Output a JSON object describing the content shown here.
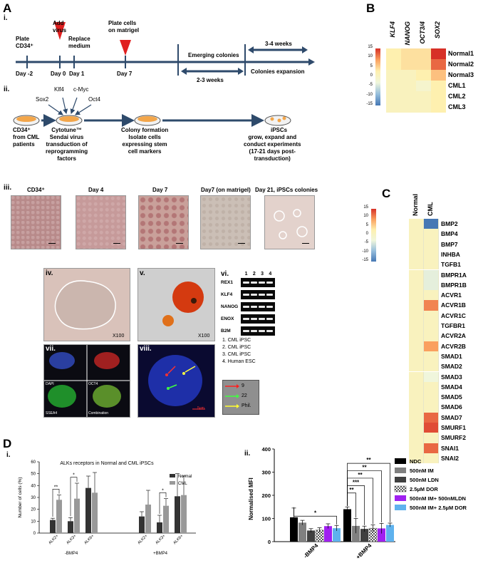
{
  "panels": {
    "A": "A",
    "B": "B",
    "C": "C",
    "D": "D"
  },
  "timeline": {
    "sub": "i.",
    "events": [
      "Plate\nCD34⁺",
      "Add\nvirus",
      "Replace\nmedium",
      "Plate cells\non matrigel"
    ],
    "days": [
      "Day -2",
      "Day 0",
      "Day 1",
      "Day 7"
    ],
    "emerging": "Emerging colonies",
    "weeks_23": "2-3 weeks",
    "weeks_34": "3-4 weeks",
    "expansion": "Colonies expansion"
  },
  "workflow": {
    "sub": "ii.",
    "factors": [
      "Sox2",
      "Klf4",
      "c-Myc",
      "Oct4"
    ],
    "step1": "CD34⁺\nfrom CML\npatients",
    "step2": "Cytotune™\nSendai virus\ntransduction of\nreprogramming\nfactors",
    "step3": "Colony formation\nIsolate cells\nexpressing stem\ncell markers",
    "step4_title": "iPSCs",
    "step4": "grow, expand and\nconduct experiments\n(17-21 days post-\ntransduction)"
  },
  "micrographs": {
    "sub": "iii.",
    "labels": [
      "CD34⁺",
      "Day 4",
      "Day 7",
      "Day7 (on matrigel)",
      "Day 21, iPSCs colonies"
    ]
  },
  "assays": {
    "iv": "iv.",
    "v": "v.",
    "vi": "vi.",
    "vii": "vii.",
    "viii": "viii.",
    "mag": "X100",
    "lanes": [
      "1",
      "2",
      "3",
      "4"
    ],
    "genes": [
      "REX1",
      "KLF4",
      "NANOG",
      "ENOX",
      "B2M"
    ],
    "legend": [
      "1.   CML iPSC",
      "2.   CML iPSC",
      "3.   CML iPSC",
      "4.   Human ESC"
    ],
    "fish_legend": [
      "9",
      "22",
      "Phil."
    ],
    "if_labels": [
      "DAPI",
      "OCT4",
      "SSEA4",
      "Combination"
    ],
    "scale": "5µm"
  },
  "heatmap_B": {
    "columns": [
      "KLF4",
      "NANOG",
      "OCT3/4",
      "SOX2"
    ],
    "rows": [
      "Normal1",
      "Normal2",
      "Normal3",
      "CML1",
      "CML2",
      "CML3"
    ],
    "colorbar_ticks": [
      "15",
      "10",
      "5",
      "0",
      "-5",
      "-10",
      "-15"
    ],
    "values": [
      [
        3,
        4,
        4,
        16
      ],
      [
        3,
        4,
        4,
        12
      ],
      [
        2,
        2,
        3,
        6
      ],
      [
        2,
        2,
        1,
        3
      ],
      [
        2,
        2,
        2,
        3
      ],
      [
        2,
        2,
        2,
        3
      ]
    ]
  },
  "heatmap_C": {
    "columns": [
      "Normal",
      "CML"
    ],
    "colorbar_ticks": [
      "15",
      "10",
      "5",
      "0",
      "-5",
      "-10",
      "-15"
    ],
    "rows": [
      "BMP2",
      "BMP4",
      "BMP7",
      "INHBA",
      "TGFB1",
      "BMPR1A",
      "BMPR1B",
      "ACVR1",
      "ACVR1B",
      "ACVR1C",
      "TGFBR1",
      "ACVR2A",
      "ACVR2B",
      "SMAD1",
      "SMAD2",
      "SMAD3",
      "SMAD4",
      "SMAD5",
      "SMAD6",
      "SMAD7",
      "SMURF1",
      "SMURF2",
      "SNAI1",
      "SNAI2"
    ],
    "values": [
      [
        2,
        -16
      ],
      [
        2,
        2
      ],
      [
        2,
        2
      ],
      [
        2,
        2
      ],
      [
        2,
        2
      ],
      [
        2,
        -1
      ],
      [
        2,
        -1
      ],
      [
        2,
        2
      ],
      [
        2,
        10
      ],
      [
        2,
        2
      ],
      [
        2,
        2
      ],
      [
        2,
        2
      ],
      [
        2,
        8
      ],
      [
        2,
        2
      ],
      [
        2,
        2
      ],
      [
        2,
        0
      ],
      [
        2,
        2
      ],
      [
        2,
        2
      ],
      [
        2,
        2
      ],
      [
        2,
        12
      ],
      [
        2,
        14
      ],
      [
        2,
        2
      ],
      [
        2,
        12
      ],
      [
        2,
        2
      ]
    ]
  },
  "chart_data": [
    {
      "type": "bar",
      "title": "ALKs receptors in Normal and CML iPSCs",
      "ylabel": "Number of cells (%)",
      "ylim": [
        0,
        60
      ],
      "yticks": [
        "0",
        "10",
        "20",
        "30",
        "40",
        "50",
        "60"
      ],
      "categories": [
        "ALK2+",
        "ALK3+",
        "ALK6+",
        "ALK2+",
        "ALK3+",
        "ALK6+"
      ],
      "groups": [
        "-BMP4",
        "+BMP4"
      ],
      "series": [
        {
          "name": "Normal",
          "values": [
            11,
            10,
            38,
            14,
            9,
            31
          ],
          "errors": [
            1.5,
            3,
            10,
            4,
            6,
            19
          ],
          "color": "#333333"
        },
        {
          "name": "CML",
          "values": [
            28,
            29,
            34,
            24,
            23,
            32
          ],
          "errors": [
            4,
            13,
            17,
            12,
            6,
            16
          ],
          "color": "#999999"
        }
      ],
      "significance": [
        "**",
        "*",
        "*"
      ],
      "legend": "right"
    },
    {
      "type": "bar",
      "ylabel": "Normalised MFI",
      "ylim": [
        0,
        400
      ],
      "yticks": [
        "0",
        "100",
        "200",
        "300",
        "400"
      ],
      "categories": [
        "-BMP4",
        "+BMP4"
      ],
      "series": [
        {
          "name": "NDC",
          "values": [
            105,
            140
          ],
          "errors": [
            40,
            10
          ],
          "color": "#000000"
        },
        {
          "name": "500nM IM",
          "values": [
            82,
            68
          ],
          "errors": [
            10,
            32
          ],
          "color": "#808080"
        },
        {
          "name": "500nM LDN",
          "values": [
            48,
            55
          ],
          "errors": [
            8,
            12
          ],
          "color": "#404040"
        },
        {
          "name": "2.5µM DOR",
          "values": [
            50,
            58
          ],
          "errors": [
            10,
            14
          ],
          "color": "pattern"
        },
        {
          "name": "500nM IM+ 500nMLDN",
          "values": [
            67,
            57
          ],
          "errors": [
            10,
            22
          ],
          "color": "#a020f0"
        },
        {
          "name": "500nM IM+ 2.5µM DOR",
          "values": [
            58,
            72
          ],
          "errors": [
            12,
            8
          ],
          "color": "#5fb2ee"
        }
      ],
      "significance": [
        "*",
        "**",
        "***",
        "**",
        "**",
        "**"
      ],
      "legend": "right"
    }
  ],
  "panelD": {
    "i": "i.",
    "ii": "ii."
  }
}
